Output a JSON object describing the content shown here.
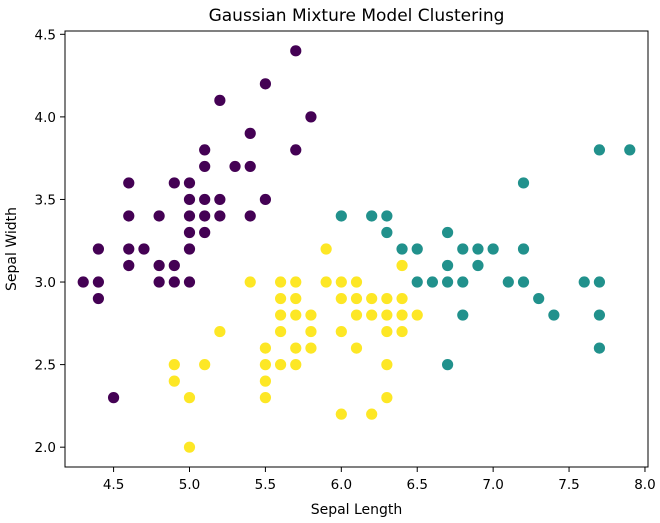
{
  "chart_data": {
    "type": "scatter",
    "title": "Gaussian Mixture Model Clustering",
    "xlabel": "Sepal Length",
    "ylabel": "Sepal Width",
    "xlim": [
      4.18,
      8.02
    ],
    "ylim": [
      1.88,
      4.52
    ],
    "xticks": [
      "4.5",
      "5.0",
      "5.5",
      "6.0",
      "6.5",
      "7.0",
      "7.5",
      "8.0"
    ],
    "yticks": [
      "2.0",
      "2.5",
      "3.0",
      "3.5",
      "4.0",
      "4.5"
    ],
    "grid": false,
    "legend": "none",
    "series": [
      {
        "color": "#440154",
        "points": [
          [
            4.3,
            3.0
          ],
          [
            4.4,
            3.0
          ],
          [
            4.4,
            2.9
          ],
          [
            4.4,
            3.2
          ],
          [
            4.5,
            2.3
          ],
          [
            4.6,
            3.1
          ],
          [
            4.6,
            3.2
          ],
          [
            4.6,
            3.4
          ],
          [
            4.6,
            3.6
          ],
          [
            4.7,
            3.2
          ],
          [
            4.8,
            3.0
          ],
          [
            4.8,
            3.1
          ],
          [
            4.8,
            3.4
          ],
          [
            4.9,
            3.0
          ],
          [
            4.9,
            3.1
          ],
          [
            4.9,
            3.6
          ],
          [
            5.0,
            3.0
          ],
          [
            5.0,
            3.2
          ],
          [
            5.0,
            3.3
          ],
          [
            5.0,
            3.4
          ],
          [
            5.0,
            3.5
          ],
          [
            5.0,
            3.6
          ],
          [
            5.1,
            3.3
          ],
          [
            5.1,
            3.4
          ],
          [
            5.1,
            3.5
          ],
          [
            5.1,
            3.7
          ],
          [
            5.1,
            3.8
          ],
          [
            5.2,
            3.4
          ],
          [
            5.2,
            3.5
          ],
          [
            5.2,
            4.1
          ],
          [
            5.3,
            3.7
          ],
          [
            5.4,
            3.4
          ],
          [
            5.4,
            3.7
          ],
          [
            5.4,
            3.9
          ],
          [
            5.5,
            3.5
          ],
          [
            5.5,
            4.2
          ],
          [
            5.7,
            3.8
          ],
          [
            5.7,
            4.4
          ],
          [
            5.8,
            4.0
          ]
        ]
      },
      {
        "color": "#21918c",
        "points": [
          [
            6.0,
            3.4
          ],
          [
            6.2,
            3.4
          ],
          [
            6.3,
            3.3
          ],
          [
            6.3,
            3.4
          ],
          [
            6.4,
            3.2
          ],
          [
            6.5,
            3.0
          ],
          [
            6.5,
            3.2
          ],
          [
            6.6,
            3.0
          ],
          [
            6.7,
            2.5
          ],
          [
            6.7,
            3.0
          ],
          [
            6.7,
            3.1
          ],
          [
            6.7,
            3.3
          ],
          [
            6.8,
            2.8
          ],
          [
            6.8,
            3.0
          ],
          [
            6.8,
            3.2
          ],
          [
            6.9,
            3.1
          ],
          [
            6.9,
            3.2
          ],
          [
            7.0,
            3.2
          ],
          [
            7.1,
            3.0
          ],
          [
            7.2,
            3.0
          ],
          [
            7.2,
            3.2
          ],
          [
            7.2,
            3.6
          ],
          [
            7.3,
            2.9
          ],
          [
            7.4,
            2.8
          ],
          [
            7.6,
            3.0
          ],
          [
            7.7,
            2.6
          ],
          [
            7.7,
            2.8
          ],
          [
            7.7,
            3.0
          ],
          [
            7.7,
            3.8
          ],
          [
            7.9,
            3.8
          ]
        ]
      },
      {
        "color": "#fde725",
        "points": [
          [
            4.9,
            2.4
          ],
          [
            4.9,
            2.5
          ],
          [
            5.0,
            2.0
          ],
          [
            5.0,
            2.3
          ],
          [
            5.1,
            2.5
          ],
          [
            5.2,
            2.7
          ],
          [
            5.4,
            3.0
          ],
          [
            5.5,
            2.3
          ],
          [
            5.5,
            2.4
          ],
          [
            5.5,
            2.5
          ],
          [
            5.5,
            2.6
          ],
          [
            5.6,
            2.5
          ],
          [
            5.6,
            2.7
          ],
          [
            5.6,
            2.8
          ],
          [
            5.6,
            2.9
          ],
          [
            5.6,
            3.0
          ],
          [
            5.7,
            2.5
          ],
          [
            5.7,
            2.6
          ],
          [
            5.7,
            2.8
          ],
          [
            5.7,
            2.9
          ],
          [
            5.7,
            3.0
          ],
          [
            5.8,
            2.6
          ],
          [
            5.8,
            2.7
          ],
          [
            5.8,
            2.8
          ],
          [
            5.9,
            3.0
          ],
          [
            5.9,
            3.2
          ],
          [
            6.0,
            2.2
          ],
          [
            6.0,
            2.7
          ],
          [
            6.0,
            2.9
          ],
          [
            6.0,
            3.0
          ],
          [
            6.1,
            2.6
          ],
          [
            6.1,
            2.8
          ],
          [
            6.1,
            2.9
          ],
          [
            6.1,
            3.0
          ],
          [
            6.2,
            2.2
          ],
          [
            6.2,
            2.8
          ],
          [
            6.2,
            2.9
          ],
          [
            6.3,
            2.3
          ],
          [
            6.3,
            2.5
          ],
          [
            6.3,
            2.7
          ],
          [
            6.3,
            2.8
          ],
          [
            6.3,
            2.9
          ],
          [
            6.4,
            2.7
          ],
          [
            6.4,
            2.8
          ],
          [
            6.4,
            2.9
          ],
          [
            6.4,
            3.1
          ],
          [
            6.5,
            2.8
          ]
        ]
      }
    ]
  }
}
